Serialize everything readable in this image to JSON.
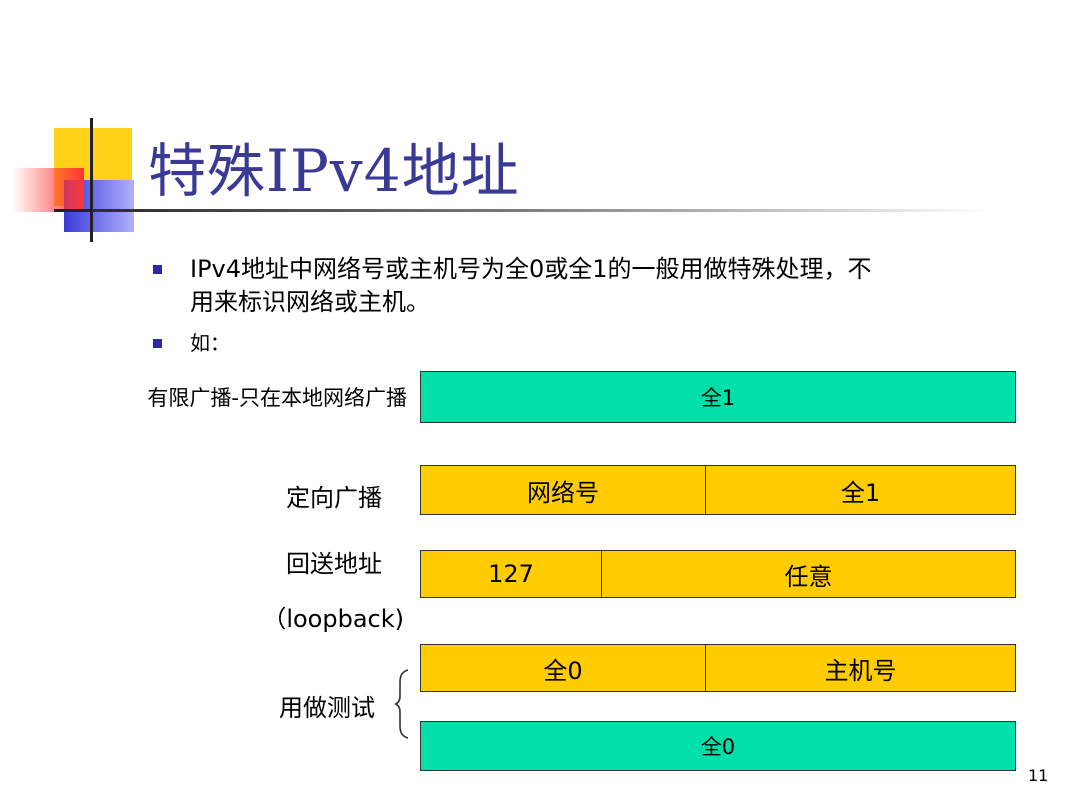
{
  "slide": {
    "title": "特殊IPv4地址",
    "number": "11"
  },
  "bullets": [
    {
      "line1": "IPv4地址中网络号或主机号为全0或全1的一般用做特殊处理，不",
      "line2": "用来标识网络或主机。"
    },
    {
      "line1": "如："
    }
  ],
  "rows": {
    "limited_broadcast": {
      "label": "有限广播-只在本地网络广播",
      "cell": "全1"
    },
    "directed_broadcast": {
      "label": "定向广播",
      "network": "网络号",
      "host": "全1"
    },
    "loopback": {
      "label_line1": "回送地址",
      "label_line2": "（loopback)",
      "network": "127",
      "host": "任意"
    },
    "testing": {
      "label": "用做测试",
      "network": "全0",
      "host": "主机号",
      "second_cell": "全0"
    }
  },
  "colors": {
    "title": "#3a3a96",
    "bullet": "#2b2ba8",
    "green_bar": "#00e0a8",
    "yellow_bar": "#ffcc00"
  }
}
